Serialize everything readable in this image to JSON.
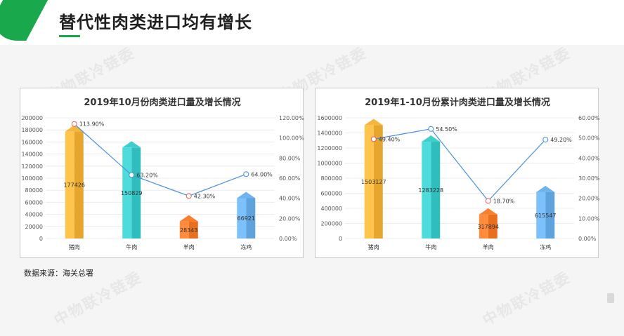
{
  "header": {
    "title": "替代性肉类进口均有增长"
  },
  "watermark": "中物联冷链委",
  "source_note": "数据来源：海关总署",
  "colors": {
    "accent_green": "#1aa84c",
    "line": "#4a90d9",
    "bar_pork": "#f2b23a",
    "bar_beef": "#3cc9c9",
    "bar_mutton": "#f57a2a",
    "bar_chicken": "#6aaeea"
  },
  "chart_data": [
    {
      "type": "bar",
      "title": "2019年10月份肉类进口量及增长情况",
      "categories": [
        "猪肉",
        "牛肉",
        "羊肉",
        "冻鸡"
      ],
      "series": [
        {
          "values": [
            177426,
            150829,
            28343,
            66921
          ],
          "labels": [
            "177426",
            "150829",
            "28343",
            "66921"
          ]
        },
        {
          "type": "line",
          "axis": "right",
          "values": [
            113.9,
            63.2,
            42.3,
            64.0
          ],
          "labels": [
            "113.90%",
            "63.20%",
            "42.30%",
            "64.00%"
          ]
        }
      ],
      "y_ticks": [
        "200000",
        "180000",
        "160000",
        "140000",
        "120000",
        "100000",
        "80000",
        "60000",
        "40000",
        "20000",
        "0"
      ],
      "y2_ticks": [
        "120.00%",
        "100.00%",
        "80.00%",
        "60.00%",
        "40.00%",
        "20.00%",
        "0.00%"
      ],
      "ylim": [
        0,
        200000
      ],
      "y2lim": [
        0,
        120
      ],
      "grid": true
    },
    {
      "type": "bar",
      "title": "2019年1-10月份累计肉类进口量及增长情况",
      "categories": [
        "猪肉",
        "牛肉",
        "羊肉",
        "冻鸡"
      ],
      "series": [
        {
          "values": [
            1503127,
            1283228,
            317894,
            615547
          ],
          "labels": [
            "1503127",
            "1283228",
            "317894",
            "615547"
          ]
        },
        {
          "type": "line",
          "axis": "right",
          "values": [
            49.4,
            54.5,
            18.7,
            49.2
          ],
          "labels": [
            "49.40%",
            "54.50%",
            "18.70%",
            "49.20%"
          ]
        }
      ],
      "y_ticks": [
        "1600000",
        "1400000",
        "1200000",
        "1000000",
        "800000",
        "600000",
        "400000",
        "200000",
        "0"
      ],
      "y2_ticks": [
        "60.00%",
        "50.00%",
        "40.00%",
        "30.00%",
        "20.00%",
        "10.00%",
        "0.00%"
      ],
      "ylim": [
        0,
        1600000
      ],
      "y2lim": [
        0,
        60
      ],
      "grid": true
    }
  ]
}
